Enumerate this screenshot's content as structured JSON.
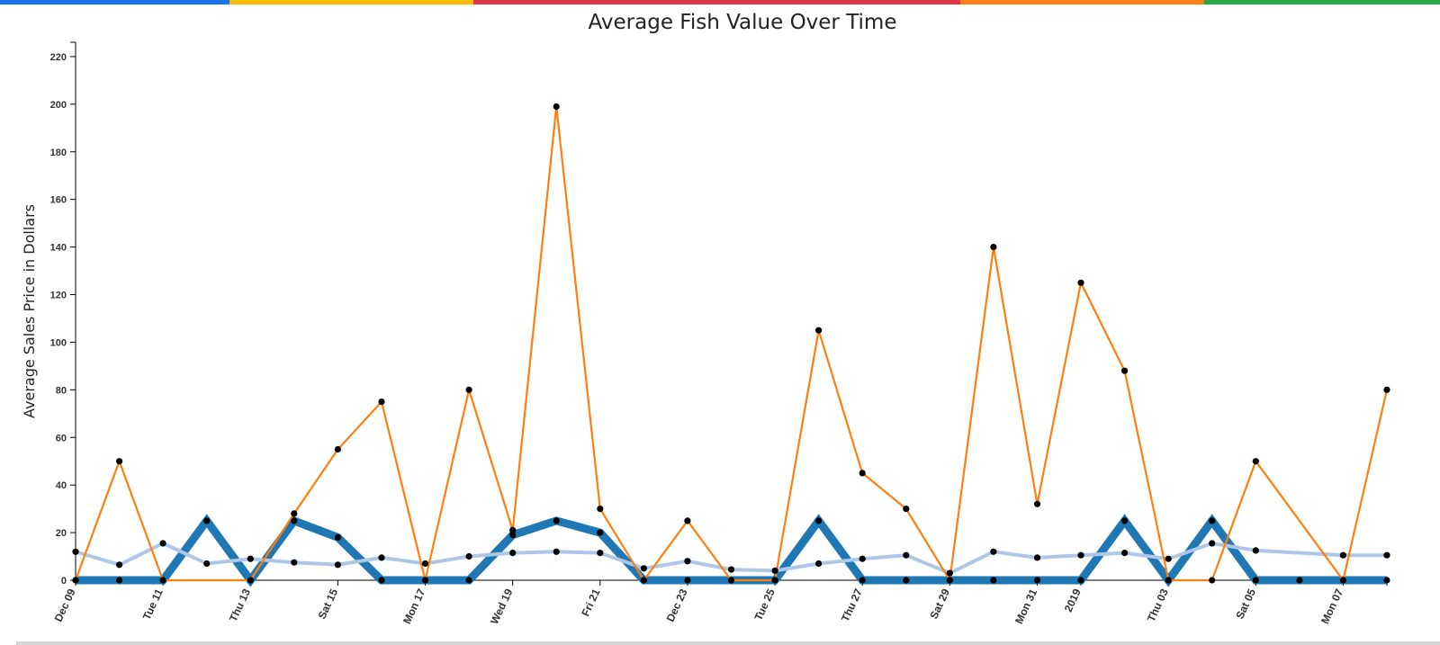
{
  "header": {
    "title": "Average Fish Value Over Time",
    "band_colors": [
      "#1a73e8",
      "#fbbc04",
      "#dc3545",
      "#fd7e14",
      "#28a745"
    ]
  },
  "chart_data": {
    "type": "line",
    "title": "Average Fish Value Over Time",
    "xlabel": "",
    "ylabel": "Average Sales Price in Dollars",
    "ylim": [
      0,
      225
    ],
    "yticks": [
      0,
      20,
      40,
      60,
      80,
      100,
      120,
      140,
      160,
      180,
      200,
      220
    ],
    "x_dates": [
      "2018-12-09",
      "2018-12-10",
      "2018-12-11",
      "2018-12-12",
      "2018-12-13",
      "2018-12-14",
      "2018-12-15",
      "2018-12-16",
      "2018-12-17",
      "2018-12-18",
      "2018-12-19",
      "2018-12-20",
      "2018-12-21",
      "2018-12-22",
      "2018-12-23",
      "2018-12-24",
      "2018-12-25",
      "2018-12-26",
      "2018-12-27",
      "2018-12-28",
      "2018-12-29",
      "2018-12-30",
      "2018-12-31",
      "2019-01-01",
      "2019-01-02",
      "2019-01-03",
      "2019-01-04",
      "2019-01-05",
      "2019-01-06",
      "2019-01-07",
      "2019-01-08"
    ],
    "x_tick_labels": [
      "Dec 09",
      "Tue 11",
      "Thu 13",
      "Sat 15",
      "Mon 17",
      "Wed 19",
      "Fri 21",
      "Dec 23",
      "Tue 25",
      "Thu 27",
      "Sat 29",
      "Mon 31",
      "2019",
      "Thu 03",
      "Sat 05",
      "Mon 07"
    ],
    "x_tick_dates": [
      "2018-12-09",
      "2018-12-11",
      "2018-12-13",
      "2018-12-15",
      "2018-12-17",
      "2018-12-19",
      "2018-12-21",
      "2018-12-23",
      "2018-12-25",
      "2018-12-27",
      "2018-12-29",
      "2018-12-31",
      "2019-01-01",
      "2019-01-03",
      "2019-01-05",
      "2019-01-07"
    ],
    "series": [
      {
        "color": "#1f77b4",
        "style": "thick",
        "points": [
          [
            "2018-12-09",
            0
          ],
          [
            "2018-12-10",
            0
          ],
          [
            "2018-12-11",
            0
          ],
          [
            "2018-12-12",
            25
          ],
          [
            "2018-12-13",
            0
          ],
          [
            "2018-12-14",
            25
          ],
          [
            "2018-12-15",
            18
          ],
          [
            "2018-12-16",
            0
          ],
          [
            "2018-12-17",
            0
          ],
          [
            "2018-12-18",
            0
          ],
          [
            "2018-12-19",
            19
          ],
          [
            "2018-12-20",
            25
          ],
          [
            "2018-12-21",
            20
          ],
          [
            "2018-12-22",
            0
          ],
          [
            "2018-12-23",
            0
          ],
          [
            "2018-12-24",
            0
          ],
          [
            "2018-12-25",
            0
          ],
          [
            "2018-12-26",
            25
          ],
          [
            "2018-12-27",
            0
          ],
          [
            "2018-12-28",
            0
          ],
          [
            "2018-12-29",
            0
          ],
          [
            "2018-12-30",
            0
          ],
          [
            "2018-12-31",
            0
          ],
          [
            "2019-01-01",
            0
          ],
          [
            "2019-01-02",
            25
          ],
          [
            "2019-01-03",
            0
          ],
          [
            "2019-01-04",
            25
          ],
          [
            "2019-01-05",
            0
          ],
          [
            "2019-01-06",
            0
          ],
          [
            "2019-01-07",
            0
          ],
          [
            "2019-01-08",
            0
          ]
        ]
      },
      {
        "color": "#aec7e8",
        "style": "medium",
        "points": [
          [
            "2018-12-09",
            12
          ],
          [
            "2018-12-10",
            6.5
          ],
          [
            "2018-12-11",
            15.5
          ],
          [
            "2018-12-12",
            7
          ],
          [
            "2018-12-13",
            9
          ],
          [
            "2018-12-14",
            7.5
          ],
          [
            "2018-12-15",
            6.5
          ],
          [
            "2018-12-16",
            9.5
          ],
          [
            "2018-12-17",
            7
          ],
          [
            "2018-12-18",
            10
          ],
          [
            "2018-12-19",
            11.5
          ],
          [
            "2018-12-20",
            12
          ],
          [
            "2018-12-21",
            11.5
          ],
          [
            "2018-12-22",
            5
          ],
          [
            "2018-12-23",
            8
          ],
          [
            "2018-12-24",
            4.5
          ],
          [
            "2018-12-25",
            4
          ],
          [
            "2018-12-26",
            7
          ],
          [
            "2018-12-27",
            9
          ],
          [
            "2018-12-28",
            10.5
          ],
          [
            "2018-12-29",
            3
          ],
          [
            "2018-12-30",
            12
          ],
          [
            "2018-12-31",
            9.5
          ],
          [
            "2019-01-01",
            10.5
          ],
          [
            "2019-01-02",
            11.5
          ],
          [
            "2019-01-03",
            9
          ],
          [
            "2019-01-04",
            15.5
          ],
          [
            "2019-01-05",
            12.5
          ],
          [
            "2019-01-07",
            10.5
          ],
          [
            "2019-01-08",
            10.5
          ]
        ]
      },
      {
        "color": "#ff7f0e",
        "style": "thin",
        "points": [
          [
            "2018-12-09",
            0
          ],
          [
            "2018-12-10",
            50
          ],
          [
            "2018-12-11",
            0
          ],
          [
            "2018-12-13",
            0
          ],
          [
            "2018-12-14",
            28
          ],
          [
            "2018-12-15",
            55
          ],
          [
            "2018-12-16",
            75
          ],
          [
            "2018-12-17",
            0
          ],
          [
            "2018-12-18",
            80
          ],
          [
            "2018-12-19",
            21
          ],
          [
            "2018-12-20",
            199
          ],
          [
            "2018-12-21",
            30
          ],
          [
            "2018-12-22",
            0
          ],
          [
            "2018-12-23",
            25
          ],
          [
            "2018-12-24",
            0
          ],
          [
            "2018-12-25",
            0
          ],
          [
            "2018-12-26",
            105
          ],
          [
            "2018-12-27",
            45
          ],
          [
            "2018-12-28",
            30
          ],
          [
            "2018-12-29",
            0
          ],
          [
            "2018-12-30",
            140
          ],
          [
            "2018-12-31",
            32
          ],
          [
            "2019-01-01",
            125
          ],
          [
            "2019-01-02",
            88
          ],
          [
            "2019-01-03",
            0
          ],
          [
            "2019-01-04",
            0
          ],
          [
            "2019-01-05",
            50
          ],
          [
            "2019-01-07",
            0
          ],
          [
            "2019-01-08",
            80
          ]
        ]
      }
    ]
  }
}
